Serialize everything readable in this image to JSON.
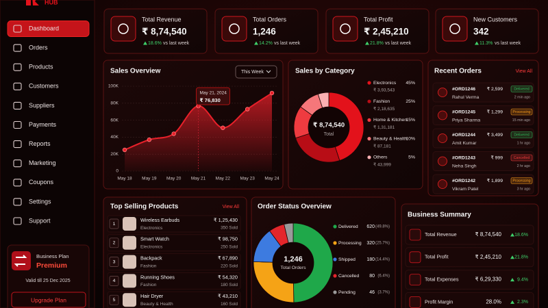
{
  "sidebar": {
    "brand": "HUB",
    "nav": [
      "Dashboard",
      "Orders",
      "Products",
      "Customers",
      "Suppliers",
      "Payments",
      "Reports",
      "Marketing",
      "Coupons",
      "Settings",
      "Support"
    ],
    "plan": {
      "label": "Business Plan",
      "name": "Premium",
      "valid": "Valid till 25 Dec 2025",
      "button": "Upgrade Plan"
    }
  },
  "kpis": [
    {
      "title": "Total Revenue",
      "value": "₹ 8,74,540",
      "change": "18.6%",
      "note": "vs last week"
    },
    {
      "title": "Total Orders",
      "value": "1,246",
      "change": "14.2%",
      "note": "vs last week"
    },
    {
      "title": "Total Profit",
      "value": "₹ 2,45,210",
      "change": "21.8%",
      "note": "vs last week"
    },
    {
      "title": "New Customers",
      "value": "342",
      "change": "11.3%",
      "note": "vs last week"
    }
  ],
  "sales_overview": {
    "type": "line",
    "title": "Sales Overview",
    "period": "This Week",
    "categories": [
      "May 18",
      "May 19",
      "May 20",
      "May 21",
      "May 22",
      "May 23",
      "May 24"
    ],
    "values": [
      25000,
      37000,
      44000,
      76830,
      51000,
      73000,
      92000
    ],
    "color": "#e8202a",
    "ylim": [
      0,
      100000
    ],
    "yticks": [
      0,
      {
        "value": 20000,
        "label": "20K"
      },
      {
        "value": 40000,
        "label": "40K"
      },
      {
        "value": 60000,
        "label": "60K"
      },
      {
        "value": 80000,
        "label": "80K"
      },
      {
        "value": 100000,
        "label": "100K"
      }
    ],
    "grid": true,
    "tooltip": {
      "date": "May 21, 2024",
      "value": "₹ 76,830"
    }
  },
  "sales_by_category": {
    "type": "pie",
    "title": "Sales by Category",
    "total": "₹ 8,74,540",
    "total_label": "Total",
    "categories": [
      "Electronics",
      "Fashion",
      "Home & Kitchen",
      "Beauty & Health",
      "Others"
    ],
    "values": [
      45,
      25,
      15,
      10,
      5
    ],
    "value_labels": [
      "45%",
      "25%",
      "15%",
      "10%",
      "5%"
    ],
    "amounts": [
      "₹ 3,93,543",
      "₹ 2,18,635",
      "₹ 1,31,181",
      "₹ 87,181",
      "₹ 43,999"
    ],
    "colors": [
      "#e3121b",
      "#b80d16",
      "#ef3b40",
      "#f5777a",
      "#fab0b2"
    ]
  },
  "recent_orders": {
    "title": "Recent Orders",
    "view_all": "View All",
    "orders": [
      {
        "id": "#ORD1246",
        "customer": "Rahul Verma",
        "amount": "₹ 2,599",
        "status": "Delivered",
        "time": "2 min ago",
        "badge_color": "#2fb457"
      },
      {
        "id": "#ORD1245",
        "customer": "Priya Sharma",
        "amount": "₹ 1,299",
        "status": "Processing",
        "time": "15 min ago",
        "badge_color": "#f59a1b"
      },
      {
        "id": "#ORD1244",
        "customer": "Amit Kumar",
        "amount": "₹ 3,499",
        "status": "Delivered",
        "time": "1 hr ago",
        "badge_color": "#2fb457"
      },
      {
        "id": "#ORD1243",
        "customer": "Neha Singh",
        "amount": "₹ 999",
        "status": "Cancelled",
        "time": "2 hr ago",
        "badge_color": "#ec3a3a"
      },
      {
        "id": "#ORD1242",
        "customer": "Vikram Patel",
        "amount": "₹ 1,899",
        "status": "Processing",
        "time": "3 hr ago",
        "badge_color": "#f59a1b"
      }
    ]
  },
  "top_products": {
    "title": "Top Selling Products",
    "view_all": "View All",
    "products": [
      {
        "rank": 1,
        "name": "Wireless Earbuds",
        "category": "Electronics",
        "revenue": "₹ 1,25,430",
        "sold": "350 Sold"
      },
      {
        "rank": 2,
        "name": "Smart Watch",
        "category": "Electronics",
        "revenue": "₹ 98,750",
        "sold": "250 Sold"
      },
      {
        "rank": 3,
        "name": "Backpack",
        "category": "Fashion",
        "revenue": "₹ 67,890",
        "sold": "220 Sold"
      },
      {
        "rank": 4,
        "name": "Running Shoes",
        "category": "Fashion",
        "revenue": "₹ 54,320",
        "sold": "180 Sold"
      },
      {
        "rank": 5,
        "name": "Hair Dryer",
        "category": "Beauty & Health",
        "revenue": "₹ 43,210",
        "sold": "160 Sold"
      }
    ]
  },
  "order_status": {
    "type": "pie",
    "title": "Order Status Overview",
    "total": "1,246",
    "total_label": "Total Orders",
    "categories": [
      "Delivered",
      "Processing",
      "Shipped",
      "Cancelled",
      "Pending"
    ],
    "values": [
      620,
      320,
      180,
      80,
      46
    ],
    "percents": [
      "(49.8%)",
      "(25.7%)",
      "(14.4%)",
      "(6.4%)",
      "(3.7%)"
    ],
    "colors": [
      "#1fa84a",
      "#f5a316",
      "#3d7be0",
      "#e3262b",
      "#9a9a9a"
    ]
  },
  "business_summary": {
    "title": "Business Summary",
    "rows": [
      {
        "label": "Total Revenue",
        "value": "₹ 8,74,540",
        "change": "18.6%"
      },
      {
        "label": "Total Profit",
        "value": "₹ 2,45,210",
        "change": "21.8%"
      },
      {
        "label": "Total Expenses",
        "value": "₹ 6,29,330",
        "change": "9.4%"
      },
      {
        "label": "Profit Margin",
        "value": "28.0%",
        "change": "2.3%"
      }
    ]
  }
}
